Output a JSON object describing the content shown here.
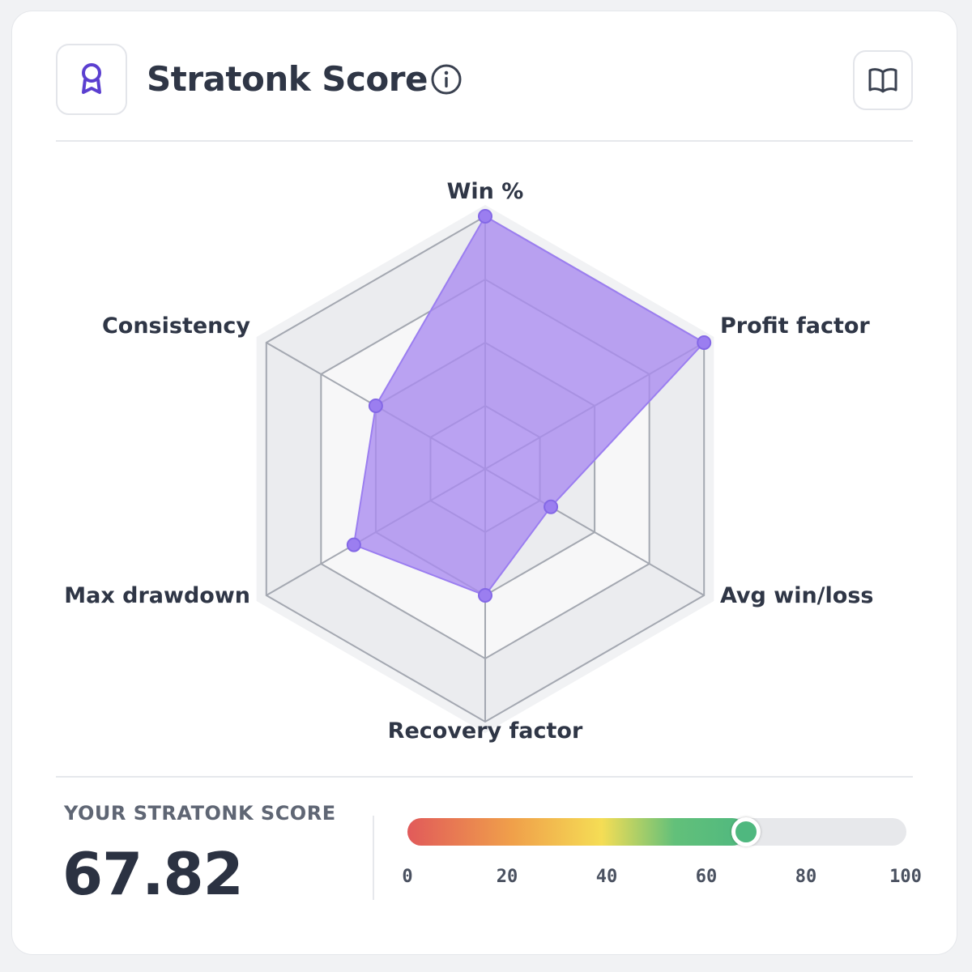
{
  "header": {
    "title": "Stratonk Score",
    "badge_icon": "award-ribbon-icon",
    "info_icon": "info-icon",
    "book_icon": "open-book-icon"
  },
  "colors": {
    "accent": "#7c5ce8",
    "radar_fill": "#a98bf0",
    "gauge_green": "#4fb87f",
    "gauge_red": "#e15a5a",
    "gauge_yellow": "#f5dd55"
  },
  "chart_data": {
    "type": "radar",
    "axes": [
      "Win %",
      "Profit factor",
      "Avg win/loss",
      "Recovery factor",
      "Max drawdown",
      "Consistency"
    ],
    "values": [
      100,
      100,
      30,
      50,
      60,
      50
    ],
    "range": [
      0,
      100
    ],
    "grid_rings": 4
  },
  "score": {
    "label": "YOUR STRATONK SCORE",
    "value": "67.82",
    "numeric": 67.82,
    "range": [
      0,
      100
    ],
    "ticks": [
      "0",
      "20",
      "40",
      "60",
      "80",
      "100"
    ]
  }
}
